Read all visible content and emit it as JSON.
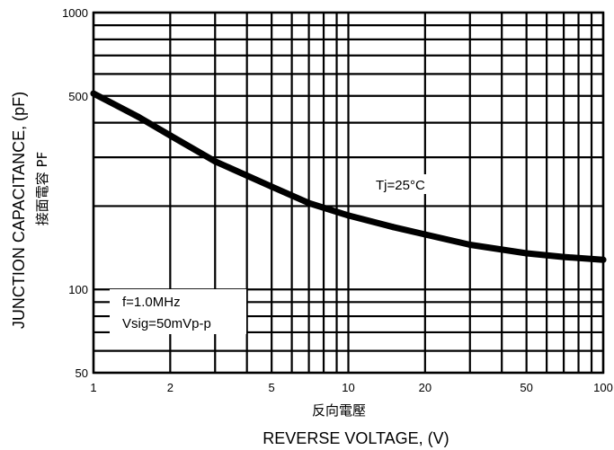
{
  "chart_data": {
    "type": "line",
    "scale": {
      "x": "log",
      "y": "log"
    },
    "xlim": [
      1,
      100
    ],
    "ylim": [
      50,
      1000
    ],
    "x_ticks": [
      1,
      2,
      5,
      10,
      20,
      50,
      100
    ],
    "y_ticks": [
      50,
      100,
      500,
      1000
    ],
    "x_tick_labels": [
      "1",
      "2",
      "5",
      "10",
      "20",
      "50",
      "100"
    ],
    "y_tick_labels": [
      "50",
      "100",
      "500",
      "1000"
    ],
    "xlabel": "REVERSE VOLTAGE, (V)",
    "xlabel_cjk": "反向電壓",
    "ylabel": "JUNCTION CAPACITANCE, (pF)",
    "ylabel_cjk": "接面電容 PF",
    "annotations": {
      "temperature": "Tj=25°C",
      "frequency": "f=1.0MHz",
      "signal": "Vsig=50mVp-p"
    },
    "grid": true,
    "series": [
      {
        "x": [
          1,
          1.5,
          2,
          3,
          5,
          7,
          10,
          15,
          20,
          30,
          50,
          70,
          100
        ],
        "values": [
          510,
          420,
          360,
          290,
          235,
          205,
          185,
          168,
          158,
          145,
          135,
          131,
          128
        ]
      }
    ]
  }
}
